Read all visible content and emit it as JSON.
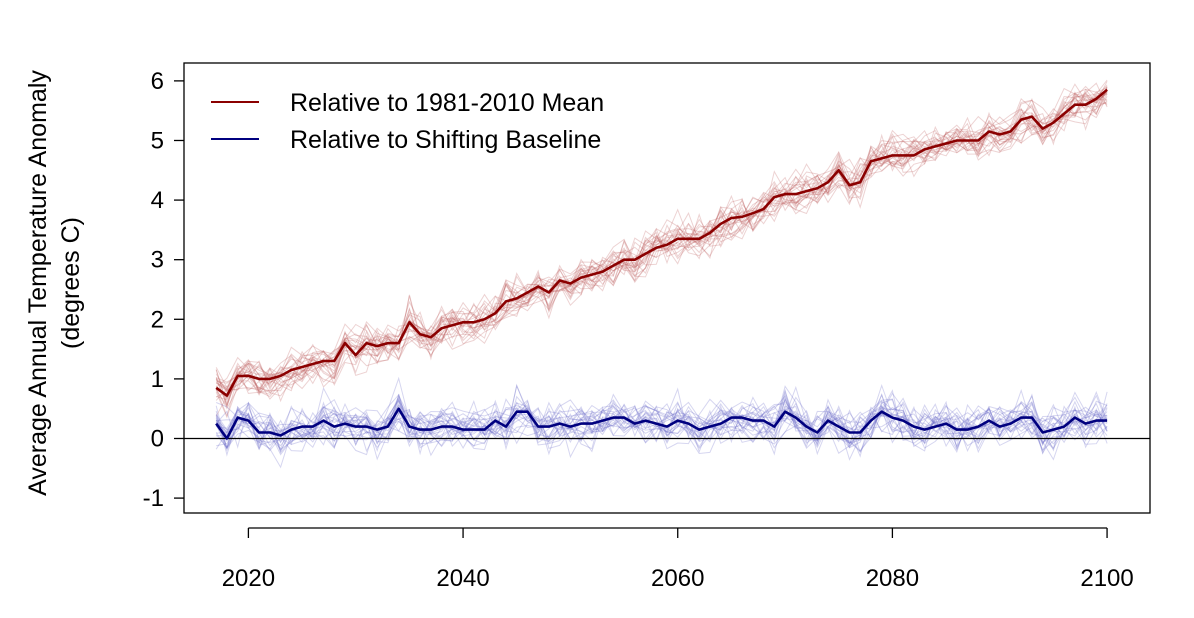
{
  "chart_data": {
    "type": "line",
    "title": "",
    "xlabel": "",
    "ylabel": "Average Annual Temperature Anomaly",
    "ylabel_line2": "(degrees C)",
    "xlim": [
      2014,
      2104
    ],
    "ylim": [
      -1.25,
      6.3
    ],
    "xticks": [
      2020,
      2040,
      2060,
      2080,
      2100
    ],
    "yticks": [
      -1,
      0,
      1,
      2,
      3,
      4,
      5,
      6
    ],
    "xtick_labels": [
      "2020",
      "2040",
      "2060",
      "2080",
      "2100"
    ],
    "ytick_labels": [
      "-1",
      "0",
      "1",
      "2",
      "3",
      "4",
      "5",
      "6"
    ],
    "reference_line_y": 0,
    "legend_position": "top-left",
    "ensemble_members_per_series": 25,
    "x": [
      2017,
      2018,
      2019,
      2020,
      2021,
      2022,
      2023,
      2024,
      2025,
      2026,
      2027,
      2028,
      2029,
      2030,
      2031,
      2032,
      2033,
      2034,
      2035,
      2036,
      2037,
      2038,
      2039,
      2040,
      2041,
      2042,
      2043,
      2044,
      2045,
      2046,
      2047,
      2048,
      2049,
      2050,
      2051,
      2052,
      2053,
      2054,
      2055,
      2056,
      2057,
      2058,
      2059,
      2060,
      2061,
      2062,
      2063,
      2064,
      2065,
      2066,
      2067,
      2068,
      2069,
      2070,
      2071,
      2072,
      2073,
      2074,
      2075,
      2076,
      2077,
      2078,
      2079,
      2080,
      2081,
      2082,
      2083,
      2084,
      2085,
      2086,
      2087,
      2088,
      2089,
      2090,
      2091,
      2092,
      2093,
      2094,
      2095,
      2096,
      2097,
      2098,
      2099,
      2100
    ],
    "series": [
      {
        "name": "Relative to 1981-2010 Mean",
        "color": "#8b0000",
        "values": [
          0.85,
          0.72,
          1.05,
          1.05,
          1.0,
          1.0,
          1.05,
          1.15,
          1.2,
          1.25,
          1.3,
          1.3,
          1.6,
          1.4,
          1.6,
          1.55,
          1.6,
          1.6,
          1.95,
          1.75,
          1.7,
          1.85,
          1.9,
          1.95,
          1.95,
          2.0,
          2.1,
          2.3,
          2.35,
          2.45,
          2.55,
          2.45,
          2.65,
          2.6,
          2.7,
          2.75,
          2.8,
          2.9,
          3.0,
          3.0,
          3.1,
          3.2,
          3.25,
          3.35,
          3.35,
          3.35,
          3.45,
          3.6,
          3.7,
          3.72,
          3.78,
          3.85,
          4.05,
          4.1,
          4.1,
          4.15,
          4.2,
          4.3,
          4.5,
          4.25,
          4.3,
          4.65,
          4.7,
          4.75,
          4.75,
          4.75,
          4.85,
          4.9,
          4.95,
          5.0,
          5.0,
          5.0,
          5.15,
          5.1,
          5.15,
          5.35,
          5.4,
          5.2,
          5.3,
          5.45,
          5.6,
          5.6,
          5.7,
          5.85
        ]
      },
      {
        "name": "Relative to Shifting Baseline",
        "color": "#00007f",
        "values": [
          0.25,
          0.0,
          0.35,
          0.3,
          0.1,
          0.1,
          0.05,
          0.15,
          0.2,
          0.2,
          0.3,
          0.2,
          0.25,
          0.2,
          0.2,
          0.15,
          0.2,
          0.5,
          0.2,
          0.15,
          0.15,
          0.2,
          0.2,
          0.15,
          0.15,
          0.15,
          0.3,
          0.2,
          0.45,
          0.45,
          0.2,
          0.2,
          0.25,
          0.2,
          0.25,
          0.25,
          0.3,
          0.35,
          0.35,
          0.25,
          0.3,
          0.25,
          0.2,
          0.3,
          0.25,
          0.15,
          0.2,
          0.25,
          0.35,
          0.35,
          0.3,
          0.3,
          0.2,
          0.45,
          0.35,
          0.2,
          0.1,
          0.3,
          0.2,
          0.1,
          0.1,
          0.3,
          0.45,
          0.35,
          0.3,
          0.2,
          0.15,
          0.2,
          0.25,
          0.15,
          0.15,
          0.2,
          0.3,
          0.2,
          0.25,
          0.35,
          0.35,
          0.1,
          0.15,
          0.2,
          0.35,
          0.25,
          0.3,
          0.3
        ]
      }
    ]
  }
}
